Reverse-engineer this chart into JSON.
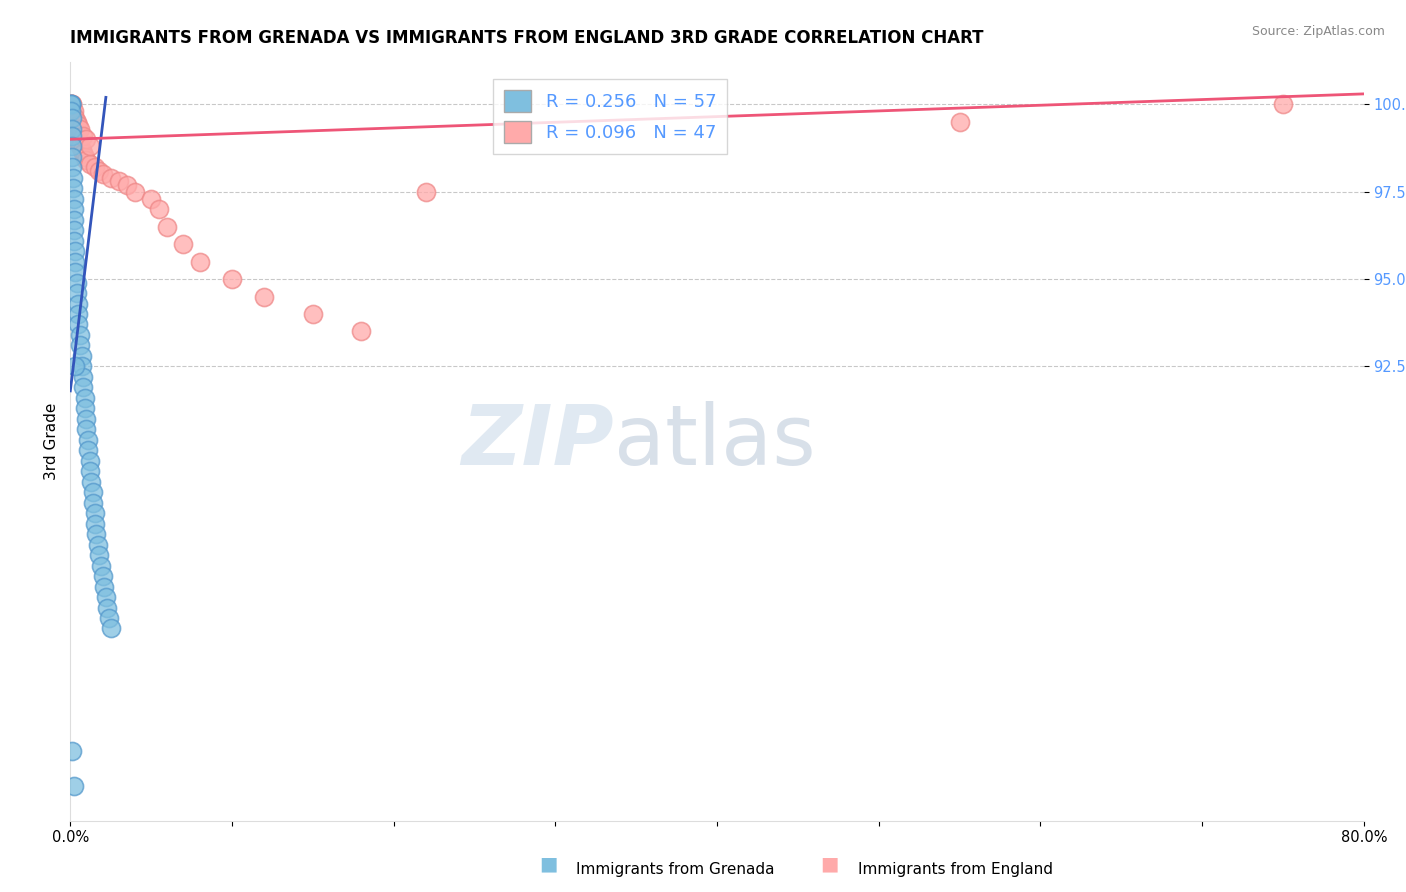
{
  "title": "IMMIGRANTS FROM GRENADA VS IMMIGRANTS FROM ENGLAND 3RD GRADE CORRELATION CHART",
  "source_text": "Source: ZipAtlas.com",
  "ylabel": "3rd Grade",
  "x_min": 0.0,
  "x_max": 0.8,
  "y_min": 79.5,
  "y_max": 101.2,
  "y_ticks": [
    92.5,
    95.0,
    97.5,
    100.0
  ],
  "x_ticks": [
    0.0,
    0.1,
    0.2,
    0.3,
    0.4,
    0.5,
    0.6,
    0.7,
    0.8
  ],
  "x_tick_labels": [
    "0.0%",
    "",
    "",
    "",
    "",
    "",
    "",
    "",
    "80.0%"
  ],
  "y_tick_labels": [
    "92.5%",
    "95.0%",
    "97.5%",
    "100.0%"
  ],
  "grenada_color": "#7fbfdf",
  "grenada_edge_color": "#5599cc",
  "england_color": "#ffaaaa",
  "england_edge_color": "#ee8888",
  "grenada_R": 0.256,
  "grenada_N": 57,
  "england_R": 0.096,
  "england_N": 47,
  "grenada_line_color": "#3355bb",
  "england_line_color": "#ee5577",
  "background_color": "#ffffff",
  "grid_color": "#bbbbbb",
  "title_fontsize": 12,
  "label_fontsize": 11,
  "tick_fontsize": 10.5,
  "right_tick_color": "#5599ff",
  "grenada_scatter": {
    "x": [
      0.0005,
      0.0005,
      0.0005,
      0.0005,
      0.0008,
      0.0008,
      0.001,
      0.001,
      0.001,
      0.001,
      0.0015,
      0.0015,
      0.002,
      0.002,
      0.002,
      0.002,
      0.0025,
      0.003,
      0.003,
      0.003,
      0.004,
      0.004,
      0.005,
      0.005,
      0.005,
      0.006,
      0.006,
      0.007,
      0.007,
      0.008,
      0.008,
      0.009,
      0.009,
      0.01,
      0.01,
      0.011,
      0.011,
      0.012,
      0.012,
      0.013,
      0.014,
      0.014,
      0.015,
      0.015,
      0.016,
      0.017,
      0.018,
      0.019,
      0.02,
      0.021,
      0.022,
      0.023,
      0.024,
      0.025,
      0.003,
      0.002,
      0.001
    ],
    "y": [
      100.0,
      100.0,
      100.0,
      99.8,
      99.6,
      99.3,
      99.1,
      98.8,
      98.5,
      98.2,
      97.9,
      97.6,
      97.3,
      97.0,
      96.7,
      96.4,
      96.1,
      95.8,
      95.5,
      95.2,
      94.9,
      94.6,
      94.3,
      94.0,
      93.7,
      93.4,
      93.1,
      92.8,
      92.5,
      92.2,
      91.9,
      91.6,
      91.3,
      91.0,
      90.7,
      90.4,
      90.1,
      89.8,
      89.5,
      89.2,
      88.9,
      88.6,
      88.3,
      88.0,
      87.7,
      87.4,
      87.1,
      86.8,
      86.5,
      86.2,
      85.9,
      85.6,
      85.3,
      85.0,
      92.5,
      80.5,
      81.5
    ]
  },
  "england_scatter": {
    "x": [
      0.0005,
      0.0005,
      0.0008,
      0.001,
      0.001,
      0.0015,
      0.002,
      0.002,
      0.003,
      0.003,
      0.004,
      0.004,
      0.005,
      0.005,
      0.006,
      0.007,
      0.008,
      0.009,
      0.01,
      0.012,
      0.015,
      0.018,
      0.02,
      0.025,
      0.03,
      0.035,
      0.04,
      0.05,
      0.055,
      0.06,
      0.07,
      0.08,
      0.1,
      0.12,
      0.15,
      0.18,
      0.22,
      0.55,
      0.75,
      0.002,
      0.003,
      0.004,
      0.005,
      0.006,
      0.008,
      0.01,
      0.012
    ],
    "y": [
      100.0,
      100.0,
      100.0,
      100.0,
      99.8,
      99.7,
      99.6,
      99.5,
      99.4,
      99.3,
      99.2,
      99.1,
      99.0,
      98.9,
      98.8,
      98.7,
      98.6,
      98.5,
      98.4,
      98.3,
      98.2,
      98.1,
      98.0,
      97.9,
      97.8,
      97.7,
      97.5,
      97.3,
      97.0,
      96.5,
      96.0,
      95.5,
      95.0,
      94.5,
      94.0,
      93.5,
      97.5,
      99.5,
      100.0,
      99.8,
      99.6,
      99.5,
      99.4,
      99.3,
      99.1,
      99.0,
      98.8
    ]
  },
  "grenada_line": {
    "x0": 0.0,
    "x1": 0.022,
    "y0": 91.8,
    "y1": 100.2
  },
  "england_line": {
    "x0": 0.0,
    "x1": 0.8,
    "y0": 99.0,
    "y1": 100.3
  }
}
